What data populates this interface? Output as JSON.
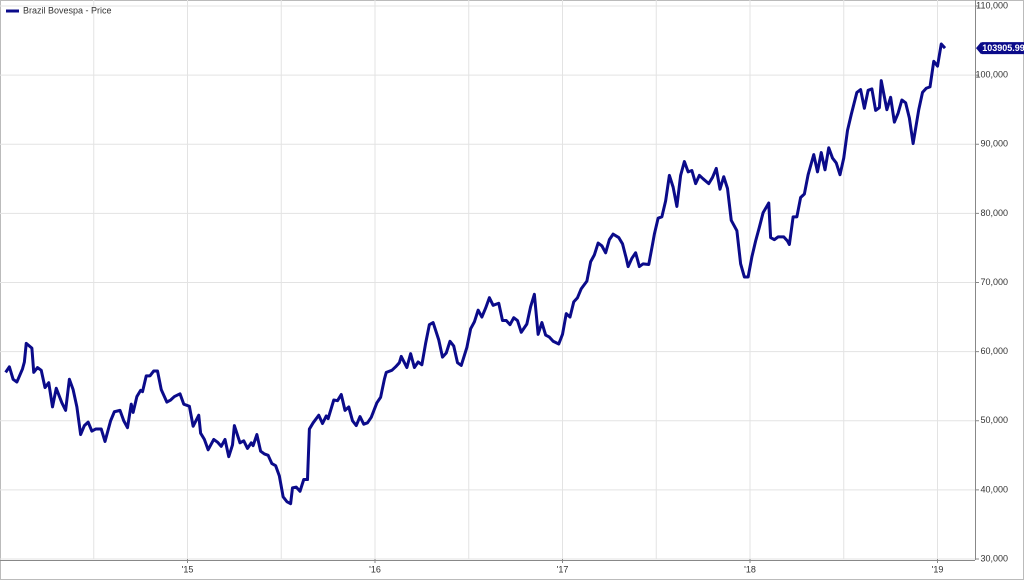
{
  "chart_data": {
    "type": "line",
    "xlim": [
      2014,
      2019.2
    ],
    "xticks": [
      {
        "value": 2015,
        "label": "'15"
      },
      {
        "value": 2016,
        "label": "'16"
      },
      {
        "value": 2017,
        "label": "'17"
      },
      {
        "value": 2018,
        "label": "'18"
      },
      {
        "value": 2019,
        "label": "'19"
      }
    ],
    "ylim": [
      30000,
      110000
    ],
    "yticks": [
      {
        "value": 30000,
        "label": "30,000"
      },
      {
        "value": 40000,
        "label": "40,000"
      },
      {
        "value": 50000,
        "label": "50,000"
      },
      {
        "value": 60000,
        "label": "60,000"
      },
      {
        "value": 70000,
        "label": "70,000"
      },
      {
        "value": 80000,
        "label": "80,000"
      },
      {
        "value": 90000,
        "label": "90,000"
      },
      {
        "value": 100000,
        "label": "100,000"
      },
      {
        "value": 110000,
        "label": "110,000"
      }
    ],
    "grid": true,
    "legend": "top-left",
    "x": [
      2014.03,
      2014.05,
      2014.07,
      2014.09,
      2014.12,
      2014.13,
      2014.14,
      2014.17,
      2014.18,
      2014.2,
      2014.22,
      2014.24,
      2014.26,
      2014.28,
      2014.3,
      2014.33,
      2014.35,
      2014.37,
      2014.39,
      2014.41,
      2014.43,
      2014.45,
      2014.47,
      2014.49,
      2014.51,
      2014.54,
      2014.56,
      2014.59,
      2014.61,
      2014.64,
      2014.66,
      2014.68,
      2014.7,
      2014.71,
      2014.73,
      2014.75,
      2014.76,
      2014.78,
      2014.8,
      2014.82,
      2014.84,
      2014.86,
      2014.89,
      2014.91,
      2014.93,
      2014.96,
      2014.98,
      2015.01,
      2015.03,
      2015.06,
      2015.07,
      2015.09,
      2015.11,
      2015.14,
      2015.16,
      2015.18,
      2015.2,
      2015.22,
      2015.24,
      2015.25,
      2015.28,
      2015.3,
      2015.32,
      2015.34,
      2015.35,
      2015.37,
      2015.39,
      2015.41,
      2015.43,
      2015.45,
      2015.47,
      2015.49,
      2015.51,
      2015.53,
      2015.55,
      2015.56,
      2015.58,
      2015.6,
      2015.62,
      2015.64,
      2015.65,
      2015.67,
      2015.7,
      2015.72,
      2015.74,
      2015.75,
      2015.78,
      2015.8,
      2015.82,
      2015.84,
      2015.86,
      2015.88,
      2015.9,
      2015.92,
      2015.94,
      2015.96,
      2015.98,
      2016.01,
      2016.03,
      2016.05,
      2016.06,
      2016.09,
      2016.11,
      2016.13,
      2016.14,
      2016.17,
      2016.19,
      2016.21,
      2016.23,
      2016.25,
      2016.27,
      2016.29,
      2016.31,
      2016.34,
      2016.36,
      2016.38,
      2016.4,
      2016.42,
      2016.44,
      2016.46,
      2016.49,
      2016.51,
      2016.53,
      2016.55,
      2016.57,
      2016.59,
      2016.61,
      2016.63,
      2016.66,
      2016.68,
      2016.7,
      2016.72,
      2016.74,
      2016.76,
      2016.78,
      2016.81,
      2016.83,
      2016.85,
      2016.87,
      2016.89,
      2016.91,
      2016.93,
      2016.95,
      2016.98,
      2017.0,
      2017.02,
      2017.04,
      2017.06,
      2017.08,
      2017.1,
      2017.13,
      2017.15,
      2017.17,
      2017.19,
      2017.21,
      2017.23,
      2017.25,
      2017.27,
      2017.3,
      2017.32,
      2017.34,
      2017.35,
      2017.37,
      2017.39,
      2017.41,
      2017.43,
      2017.46,
      2017.48,
      2017.49,
      2017.51,
      2017.53,
      2017.55,
      2017.57,
      2017.59,
      2017.61,
      2017.63,
      2017.65,
      2017.67,
      2017.69,
      2017.71,
      2017.73,
      2017.75,
      2017.78,
      2017.8,
      2017.82,
      2017.84,
      2017.86,
      2017.88,
      2017.9,
      2017.93,
      2017.95,
      2017.97,
      2017.99,
      2018.01,
      2018.03,
      2018.05,
      2018.07,
      2018.1,
      2018.11,
      2018.13,
      2018.15,
      2018.18,
      2018.2,
      2018.21,
      2018.23,
      2018.25,
      2018.27,
      2018.29,
      2018.31,
      2018.34,
      2018.36,
      2018.38,
      2018.4,
      2018.42,
      2018.44,
      2018.46,
      2018.48,
      2018.5,
      2018.52,
      2018.54,
      2018.57,
      2018.59,
      2018.61,
      2018.63,
      2018.65,
      2018.67,
      2018.69,
      2018.7,
      2018.73,
      2018.75,
      2018.77,
      2018.79,
      2018.81,
      2018.83,
      2018.85,
      2018.87,
      2018.9,
      2018.92,
      2018.94,
      2018.96,
      2018.98,
      2019.0,
      2019.02,
      2019.04
    ],
    "series": [
      {
        "name": "Brazil Bovespa - Price",
        "color": "#0b0b8a",
        "values": [
          57000,
          57800,
          56000,
          55600,
          57500,
          58500,
          61200,
          60500,
          57000,
          57700,
          57300,
          54800,
          55500,
          52000,
          54700,
          52600,
          51500,
          56000,
          54500,
          52000,
          48000,
          49300,
          49800,
          48500,
          48800,
          48800,
          47000,
          50000,
          51300,
          51500,
          50000,
          49000,
          52400,
          51200,
          53500,
          54400,
          54200,
          56500,
          56500,
          57200,
          57200,
          54500,
          52700,
          53000,
          53500,
          53900,
          52400,
          52100,
          49200,
          50800,
          48200,
          47300,
          45800,
          47300,
          46900,
          46300,
          47300,
          44800,
          46500,
          49300,
          46800,
          47100,
          46000,
          46800,
          46400,
          48000,
          45600,
          45200,
          45000,
          43800,
          43500,
          42000,
          39000,
          38300,
          38000,
          40300,
          40400,
          39800,
          41500,
          41500,
          48800,
          49700,
          50800,
          49600,
          50700,
          50300,
          53000,
          52900,
          53800,
          51500,
          52000,
          50000,
          49300,
          50600,
          49500,
          49700,
          50500,
          52600,
          53400,
          56000,
          57000,
          57300,
          57800,
          58400,
          59300,
          57700,
          59700,
          57700,
          58500,
          58100,
          61200,
          63900,
          64200,
          61700,
          59200,
          59800,
          61500,
          60800,
          58400,
          58000,
          60600,
          63300,
          64300,
          66000,
          65000,
          66300,
          67800,
          66700,
          67000,
          64500,
          64500,
          63900,
          64900,
          64500,
          62800,
          64000,
          66500,
          68300,
          62500,
          64200,
          62400,
          62100,
          61500,
          61100,
          62500,
          65500,
          65000,
          67200,
          67800,
          69100,
          70200,
          73000,
          74000,
          75700,
          75300,
          74300,
          76200,
          77000,
          76500,
          75600,
          73500,
          72300,
          73500,
          74300,
          72300,
          72700,
          72600,
          75500,
          77000,
          79300,
          79500,
          81800,
          85500,
          83800,
          81000,
          85500,
          87500,
          86000,
          86200,
          84300,
          85500,
          85000,
          84300,
          85200,
          86500,
          83500,
          85300,
          83600,
          79000,
          77500,
          72700,
          70800,
          70800,
          73700,
          76000,
          78000,
          80100,
          81500,
          76500,
          76200,
          76600,
          76600,
          76000,
          75500,
          79500,
          79500,
          82300,
          82800,
          85600,
          88500,
          86000,
          88800,
          86300,
          89500,
          88000,
          87300,
          85600,
          88000,
          92000,
          94300,
          97500,
          97900,
          95200,
          97800,
          98000,
          94900,
          95300,
          99200,
          95000,
          96800,
          93200,
          94500,
          96400,
          96000,
          93800,
          90100,
          95000,
          97500,
          98100,
          98300,
          102000,
          101300,
          104500,
          103905.99
        ]
      }
    ]
  }
}
